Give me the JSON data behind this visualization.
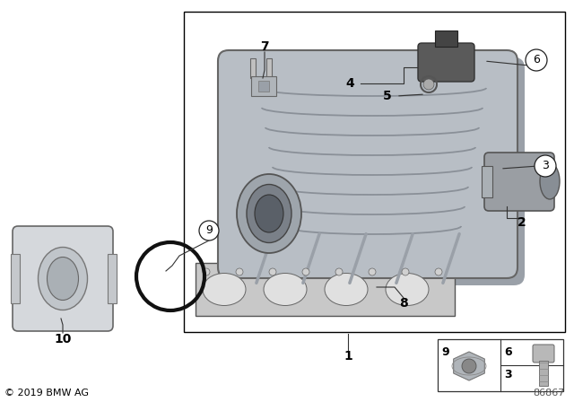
{
  "bg_color": "#ffffff",
  "copyright": "© 2019 BMW AG",
  "diagram_number": "86867",
  "box_color": "#ffffff",
  "box_edge": "#000000",
  "manifold_color": "#b8bec5",
  "manifold_edge": "#666666",
  "gasket_color": "#c8c8c8",
  "gasket_edge": "#555555",
  "tb_color": "#d5d8dc",
  "tb_edge": "#666666",
  "sensor_color": "#5a5a5a",
  "port_color": "#9a9ea3",
  "label_color": "#000000",
  "line_color": "#333333",
  "inset_bg": "#ffffff",
  "nut_color": "#afafaf",
  "bolt_color": "#b8b8b8"
}
